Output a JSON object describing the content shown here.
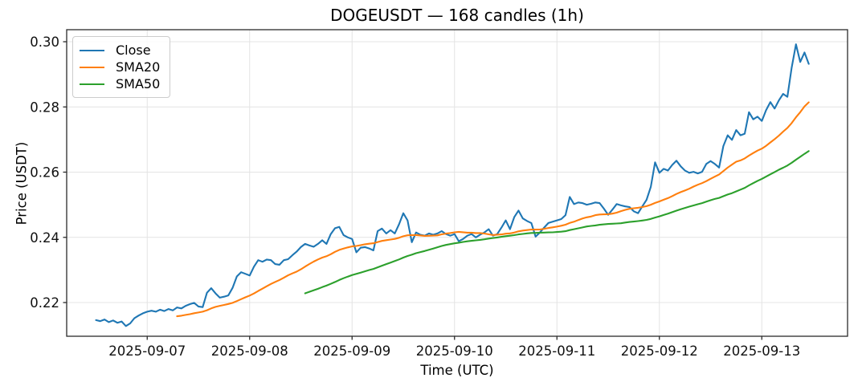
{
  "window": {
    "kind": "chart-figure"
  },
  "chart_data": {
    "type": "line",
    "symbol": "DOGEUSDT",
    "title": "DOGEUSDT — 168 candles (1h)",
    "xlabel": "Time (UTC)",
    "ylabel": "Price (USDT)",
    "n_candles": 168,
    "interval": "1h",
    "grid": true,
    "legend_position": "upper-left",
    "y_ticks": [
      0.3,
      0.28,
      0.26,
      0.24,
      0.22
    ],
    "y_tick_labels": [
      "0.30",
      "0.28",
      "0.26",
      "0.24",
      "0.22"
    ],
    "ylim": [
      0.2089,
      0.3037
    ],
    "x_tick_labels": [
      "2025-09-07",
      "2025-09-08",
      "2025-09-09",
      "2025-09-10",
      "2025-09-11",
      "2025-09-12",
      "2025-09-13"
    ],
    "x_tick_indices": [
      12,
      36,
      60,
      84,
      108,
      132,
      156
    ],
    "legend": [
      {
        "label": "Close",
        "color": "#1f77b4"
      },
      {
        "label": "SMA20",
        "color": "#ff7f0e"
      },
      {
        "label": "SMA50",
        "color": "#2ca02c"
      }
    ],
    "series": [
      {
        "name": "Close",
        "color": "#1f77b4",
        "kind": "raw",
        "values": [
          0.2146,
          0.2143,
          0.2148,
          0.214,
          0.2145,
          0.2138,
          0.2142,
          0.2128,
          0.2136,
          0.2152,
          0.216,
          0.2167,
          0.2172,
          0.2175,
          0.2172,
          0.2178,
          0.2174,
          0.218,
          0.2176,
          0.2185,
          0.2182,
          0.219,
          0.2195,
          0.2199,
          0.2188,
          0.2186,
          0.223,
          0.2244,
          0.2228,
          0.2215,
          0.2218,
          0.2222,
          0.2245,
          0.228,
          0.2293,
          0.2288,
          0.2283,
          0.231,
          0.233,
          0.2325,
          0.2332,
          0.233,
          0.2318,
          0.2316,
          0.233,
          0.2333,
          0.2345,
          0.2356,
          0.237,
          0.238,
          0.2375,
          0.2371,
          0.238,
          0.2391,
          0.238,
          0.241,
          0.2428,
          0.2432,
          0.2407,
          0.24,
          0.2395,
          0.2354,
          0.2368,
          0.237,
          0.2366,
          0.236,
          0.2419,
          0.2427,
          0.2412,
          0.2422,
          0.2412,
          0.244,
          0.2474,
          0.2452,
          0.2385,
          0.2415,
          0.2408,
          0.2405,
          0.2412,
          0.2408,
          0.2412,
          0.2419,
          0.241,
          0.2405,
          0.241,
          0.2388,
          0.2395,
          0.2405,
          0.241,
          0.24,
          0.2408,
          0.2415,
          0.2425,
          0.2405,
          0.241,
          0.243,
          0.2452,
          0.2425,
          0.2462,
          0.2482,
          0.2458,
          0.245,
          0.2444,
          0.2402,
          0.2415,
          0.243,
          0.2444,
          0.2448,
          0.2452,
          0.2456,
          0.2468,
          0.2524,
          0.2502,
          0.2507,
          0.2505,
          0.25,
          0.2503,
          0.2507,
          0.2505,
          0.2488,
          0.2469,
          0.2485,
          0.2502,
          0.2498,
          0.2495,
          0.2493,
          0.248,
          0.2474,
          0.2495,
          0.2515,
          0.2555,
          0.263,
          0.2598,
          0.261,
          0.2605,
          0.2622,
          0.2635,
          0.2618,
          0.2605,
          0.2598,
          0.2601,
          0.2596,
          0.2601,
          0.2625,
          0.2634,
          0.2625,
          0.2614,
          0.268,
          0.2713,
          0.2699,
          0.2729,
          0.2713,
          0.2718,
          0.2784,
          0.2762,
          0.277,
          0.2757,
          0.279,
          0.2815,
          0.2795,
          0.282,
          0.284,
          0.2831,
          0.292,
          0.2992,
          0.2938,
          0.2967,
          0.2932
        ]
      },
      {
        "name": "SMA20",
        "color": "#ff7f0e",
        "kind": "sma",
        "window": 20
      },
      {
        "name": "SMA50",
        "color": "#2ca02c",
        "kind": "sma",
        "window": 50
      }
    ]
  }
}
